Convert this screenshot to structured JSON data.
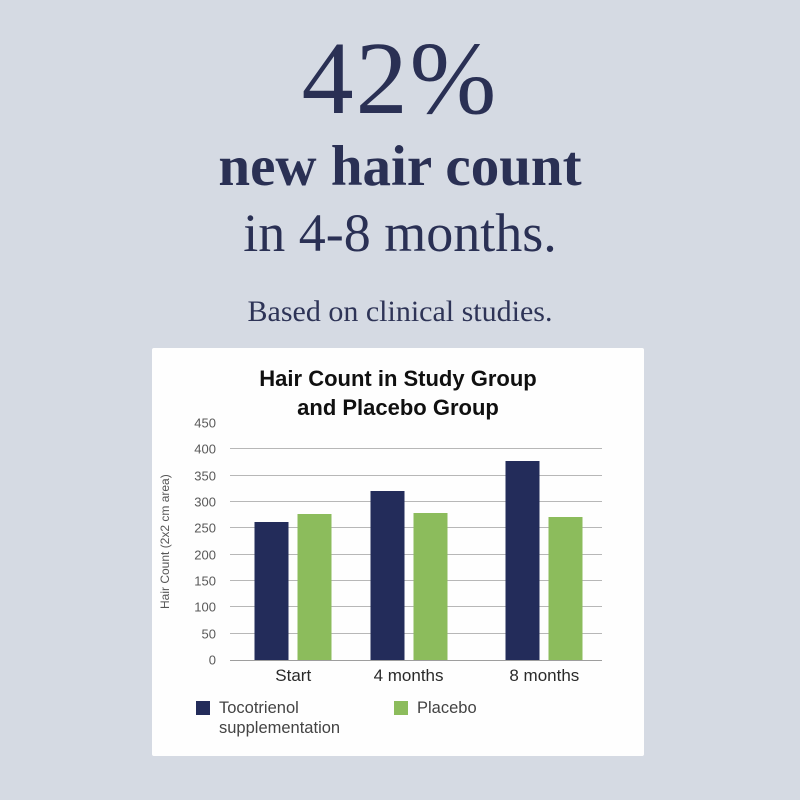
{
  "headline": {
    "stat": "42%",
    "line1": "new hair count",
    "line2": "in 4-8 months.",
    "subtext": "Based on clinical studies."
  },
  "colors": {
    "background": "#d5dae3",
    "headline_text": "#2a3054",
    "panel_background": "#fefefe",
    "tocotrienol_bar": "#232c5a",
    "placebo_bar": "#8cbc5c",
    "gridline": "#b7b7b7",
    "tick_text": "#595959"
  },
  "chart_data": {
    "type": "bar",
    "title": "Hair Count in Study Group and Placebo Group",
    "title_lines": [
      "Hair Count in Study Group",
      "and Placebo Group"
    ],
    "categories": [
      "Start",
      "4 months",
      "8 months"
    ],
    "series": [
      {
        "name": "Tocotrienol supplementation",
        "color": "#232c5a",
        "values": [
          263,
          320,
          378
        ]
      },
      {
        "name": "Placebo",
        "color": "#8cbc5c",
        "values": [
          278,
          280,
          272
        ]
      }
    ],
    "xlabel": "",
    "ylabel": "Hair Count (2x2 cm area)",
    "yticks": [
      0,
      50,
      100,
      150,
      200,
      250,
      300,
      350,
      400,
      450
    ],
    "ylim": [
      0,
      450
    ],
    "grid": true,
    "legend_position": "bottom"
  }
}
